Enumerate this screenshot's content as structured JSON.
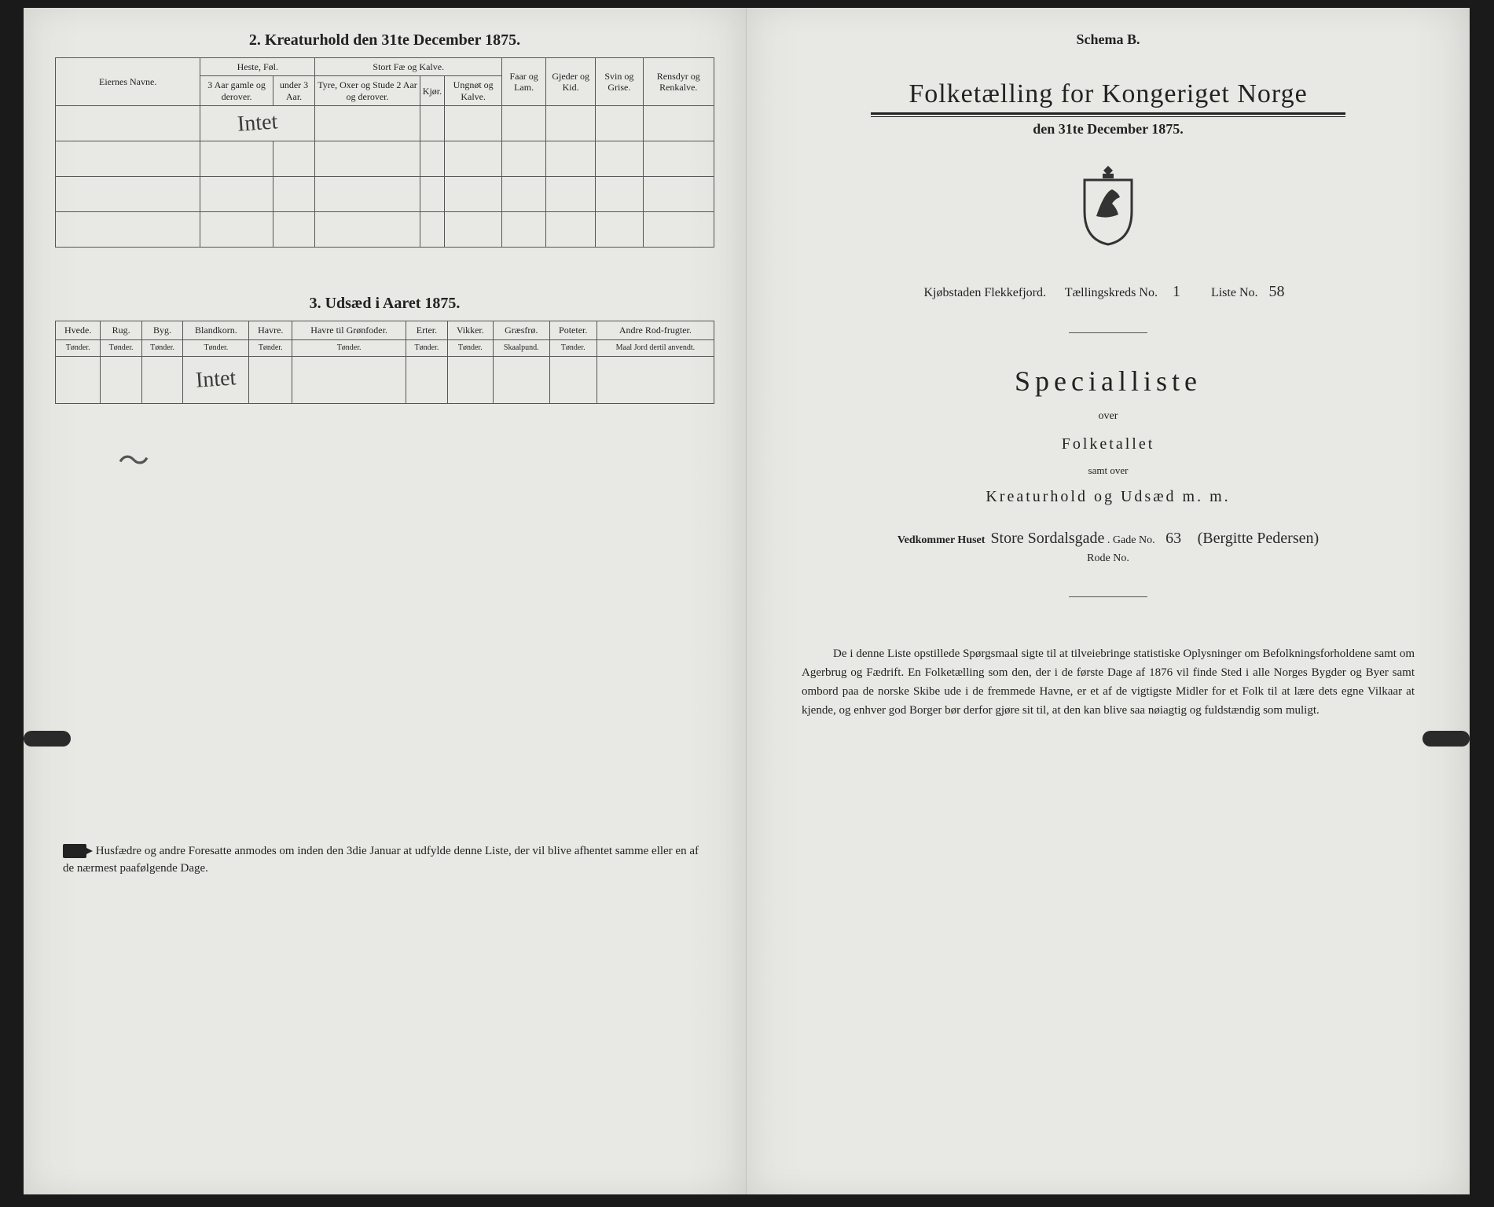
{
  "colors": {
    "paper": "#e8e8e4",
    "ink": "#222222",
    "border": "#555555",
    "background": "#1a1a1a"
  },
  "leftPage": {
    "section2": {
      "title": "2.  Kreaturhold den 31te December 1875.",
      "table": {
        "groupHeaders": [
          "Eiernes Navne.",
          "Heste, Føl.",
          "Stort Fæ og Kalve.",
          "Faar og Lam.",
          "Gjeder og Kid.",
          "Svin og Grise.",
          "Rensdyr og Renkalve."
        ],
        "subHeaders": {
          "heste": [
            "3 Aar gamle og derover.",
            "under 3 Aar."
          ],
          "stortFae": [
            "Tyre, Oxer og Stude 2 Aar og derover.",
            "Kjør.",
            "Ungnøt og Kalve."
          ]
        },
        "rows": [
          {
            "navne": "",
            "handwritten": "Intet"
          },
          {
            "navne": ""
          },
          {
            "navne": ""
          },
          {
            "navne": ""
          }
        ]
      }
    },
    "section3": {
      "title": "3.  Udsæd i Aaret 1875.",
      "table": {
        "headers": [
          {
            "top": "Hvede.",
            "bottom": "Tønder."
          },
          {
            "top": "Rug.",
            "bottom": "Tønder."
          },
          {
            "top": "Byg.",
            "bottom": "Tønder."
          },
          {
            "top": "Blandkorn.",
            "bottom": "Tønder."
          },
          {
            "top": "Havre.",
            "bottom": "Tønder."
          },
          {
            "top": "Havre til Grønfoder.",
            "bottom": "Tønder."
          },
          {
            "top": "Erter.",
            "bottom": "Tønder."
          },
          {
            "top": "Vikker.",
            "bottom": "Tønder."
          },
          {
            "top": "Græsfrø.",
            "bottom": "Skaalpund."
          },
          {
            "top": "Poteter.",
            "bottom": "Tønder."
          },
          {
            "top": "Andre Rod-frugter.",
            "bottom": "Maal Jord dertil anvendt."
          }
        ],
        "handwritten": "Intet"
      }
    },
    "footerNote": "Husfædre og andre Foresatte anmodes om inden den 3die Januar at udfylde denne Liste, der vil blive afhentet samme eller en af de nærmest paafølgende Dage."
  },
  "rightPage": {
    "schemaLabel": "Schema B.",
    "mainTitle": "Folketælling for Kongeriget Norge",
    "subDate": "den 31te December 1875.",
    "fillLine": {
      "prefix": "Kjøbstaden Flekkefjord.",
      "t_label": "Tællingskreds No.",
      "t_value": "1",
      "l_label": "Liste No.",
      "l_value": "58"
    },
    "specTitle": "Specialliste",
    "overText": "over",
    "folketallet": "Folketallet",
    "samtOver": "samt over",
    "kreaturLine": "Kreaturhold og Udsæd m. m.",
    "houseLine": {
      "prefix": "Vedkommer Huset",
      "house_hw": "Store Sordalsgade",
      "gade_label": ".  Gade No.",
      "gade_value": "63",
      "name_hw": "(Bergitte Pedersen)"
    },
    "rodeLabel": "Rode No.",
    "bottomPara": "De i denne Liste opstillede Spørgsmaal sigte til at tilveiebringe statistiske Oplysninger om Befolkningsforholdene samt om Agerbrug og Fædrift.  En Folketælling som den, der i de første Dage af 1876 vil finde Sted i alle Norges Bygder og Byer samt ombord paa de norske Skibe ude i de fremmede Havne, er et af de vigtigste Midler for et Folk til at lære dets egne Vilkaar at kjende, og enhver god Borger bør derfor gjøre sit til, at den kan blive saa nøiagtig og fuldstændig som muligt."
  }
}
